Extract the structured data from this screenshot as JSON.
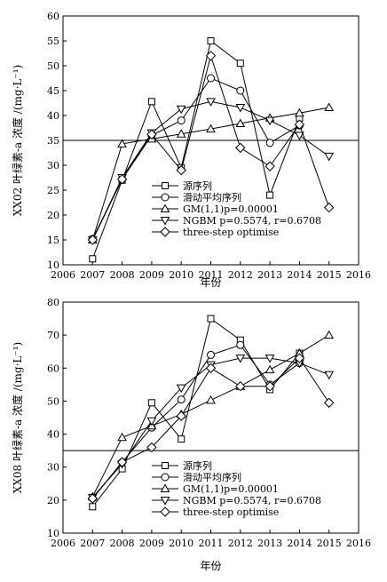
{
  "chart_data": [
    {
      "type": "line",
      "ylabel": "XX02 叶绿素-a 浓度 /(mg·L⁻¹)",
      "xlabel": "年份",
      "xlim": [
        2006,
        2016
      ],
      "ylim": [
        10,
        60
      ],
      "xticks": [
        2006,
        2007,
        2008,
        2009,
        2010,
        2011,
        2012,
        2013,
        2014,
        2015,
        2016
      ],
      "yticks": [
        10,
        15,
        20,
        25,
        30,
        35,
        40,
        45,
        50,
        55,
        60
      ],
      "reference_line": 35,
      "legend_placement": "bottom-center",
      "series": [
        {
          "name": "源序列",
          "marker": "square",
          "x": [
            2007,
            2008,
            2009,
            2010,
            2011,
            2012,
            2013,
            2014
          ],
          "values": [
            11.2,
            27.0,
            42.8,
            29.5,
            55.0,
            50.5,
            24.0,
            39.5
          ]
        },
        {
          "name": "滑动平均序列",
          "marker": "circle",
          "x": [
            2007,
            2008,
            2009,
            2010,
            2011,
            2012,
            2013,
            2014
          ],
          "values": [
            15.2,
            27.2,
            36.0,
            39.0,
            47.5,
            45.0,
            34.5,
            38.0
          ]
        },
        {
          "name": "GM(1,1)p=0.00001",
          "marker": "triangle-up",
          "x": [
            2007,
            2008,
            2009,
            2010,
            2011,
            2012,
            2013,
            2014,
            2015
          ],
          "values": [
            15.0,
            34.3,
            35.3,
            36.3,
            37.3,
            38.4,
            39.5,
            40.5,
            41.6
          ]
        },
        {
          "name": "NGBM p=0.5574, r=0.6708",
          "marker": "triangle-down",
          "x": [
            2007,
            2008,
            2009,
            2010,
            2011,
            2012,
            2013,
            2014,
            2015
          ],
          "values": [
            15.0,
            27.5,
            36.5,
            41.3,
            42.8,
            41.6,
            39.0,
            36.0,
            31.8
          ]
        },
        {
          "name": "three-step optimise",
          "marker": "diamond",
          "x": [
            2007,
            2008,
            2009,
            2010,
            2011,
            2012,
            2013,
            2014,
            2015
          ],
          "values": [
            15.0,
            27.2,
            36.2,
            29.0,
            52.0,
            33.5,
            29.8,
            38.2,
            21.5
          ]
        }
      ]
    },
    {
      "type": "line",
      "ylabel": "XX08 叶绿素-a 浓度 /(mg·L⁻¹)",
      "xlabel": "年份",
      "xlim": [
        2006,
        2016
      ],
      "ylim": [
        10,
        80
      ],
      "xticks": [
        2006,
        2007,
        2008,
        2009,
        2010,
        2011,
        2012,
        2013,
        2014,
        2015,
        2016
      ],
      "yticks": [
        10,
        20,
        30,
        40,
        50,
        60,
        70,
        80
      ],
      "reference_line": 35,
      "legend_placement": "bottom-center",
      "series": [
        {
          "name": "源序列",
          "marker": "square",
          "x": [
            2007,
            2008,
            2009,
            2010,
            2011,
            2012,
            2013,
            2014
          ],
          "values": [
            18.0,
            29.5,
            49.5,
            38.5,
            75.0,
            68.5,
            53.5,
            64.5
          ]
        },
        {
          "name": "滑动平均序列",
          "marker": "circle",
          "x": [
            2007,
            2008,
            2009,
            2010,
            2011,
            2012,
            2013,
            2014
          ],
          "values": [
            20.5,
            31.5,
            42.0,
            50.5,
            64.0,
            67.0,
            55.0,
            61.5
          ]
        },
        {
          "name": "GM(1,1)p=0.00001",
          "marker": "triangle-up",
          "x": [
            2007,
            2008,
            2009,
            2010,
            2011,
            2012,
            2013,
            2014,
            2015
          ],
          "values": [
            21.0,
            39.0,
            42.5,
            46.0,
            50.3,
            54.5,
            59.5,
            64.5,
            70.0
          ]
        },
        {
          "name": "NGBM p=0.5574, r=0.6708",
          "marker": "triangle-down",
          "x": [
            2007,
            2008,
            2009,
            2010,
            2011,
            2012,
            2013,
            2014,
            2015
          ],
          "values": [
            20.8,
            31.0,
            44.0,
            54.0,
            61.0,
            63.0,
            63.0,
            61.5,
            58.0
          ]
        },
        {
          "name": "three-step optimise",
          "marker": "diamond",
          "x": [
            2007,
            2008,
            2009,
            2010,
            2011,
            2012,
            2013,
            2014,
            2015
          ],
          "values": [
            20.5,
            31.5,
            36.0,
            45.5,
            60.0,
            54.5,
            54.5,
            63.0,
            49.5
          ]
        }
      ]
    }
  ]
}
